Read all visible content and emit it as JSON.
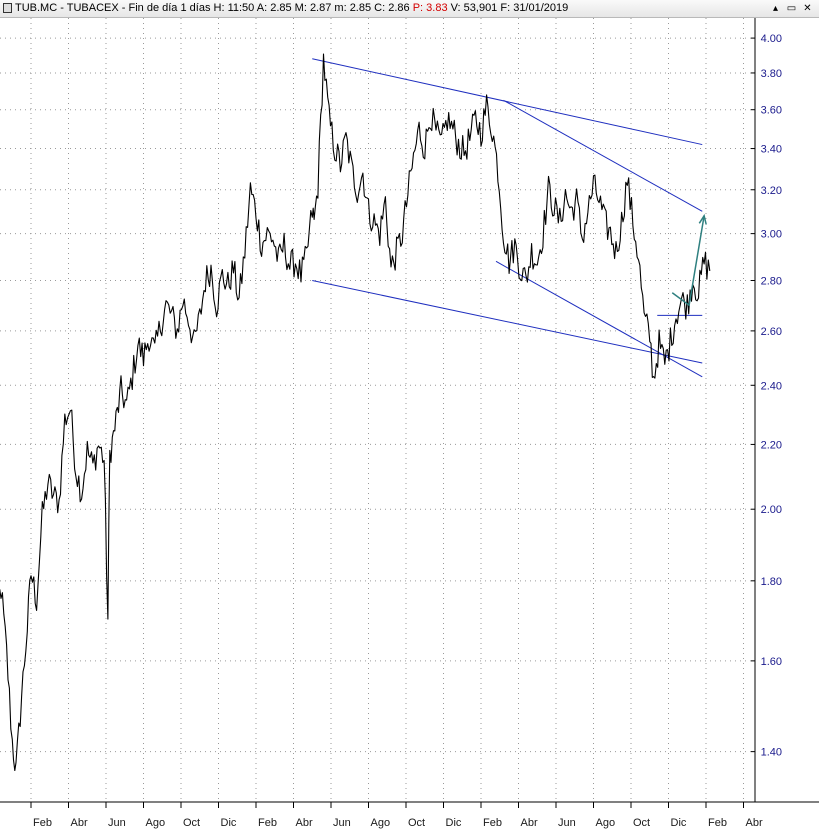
{
  "header": {
    "symbol": "TUB.MC",
    "name": "TUBACEX",
    "period": "Fin de día 1 días",
    "fields": [
      {
        "label": "H:",
        "value": "11:50"
      },
      {
        "label": "A:",
        "value": "2.85"
      },
      {
        "label": "M:",
        "value": "2.87"
      },
      {
        "label": "m:",
        "value": "2.85"
      },
      {
        "label": "C:",
        "value": "2.86"
      },
      {
        "label": "P:",
        "value": "3.83",
        "highlight": true
      },
      {
        "label": "V:",
        "value": "53,901"
      },
      {
        "label": "F:",
        "value": "31/01/2019"
      }
    ],
    "window_buttons": [
      "▴",
      "▭",
      "✕"
    ]
  },
  "colors": {
    "price": "#000000",
    "trendline": "#1f2fbf",
    "arrow": "#2f8080",
    "grid": "#9a9a9a",
    "axis_text": "#1a1a8c"
  },
  "chart_data": {
    "type": "line",
    "scale": "log",
    "ylim": [
      1.3,
      4.12
    ],
    "y_ticks": [
      1.4,
      1.6,
      1.8,
      2.0,
      2.2,
      2.4,
      2.6,
      2.8,
      3.0,
      3.2,
      3.4,
      3.6,
      3.8,
      4.0
    ],
    "y_tick_labels": [
      "1.40",
      "1.60",
      "1.80",
      "2.00",
      "2.20",
      "2.40",
      "2.60",
      "2.80",
      "3.00",
      "3.20",
      "3.40",
      "3.60",
      "3.80",
      "4.00"
    ],
    "x_labels": [
      "Feb",
      "Abr",
      "Jun",
      "Ago",
      "Oct",
      "Dic",
      "Feb",
      "Abr",
      "Jun",
      "Ago",
      "Oct",
      "Dic",
      "Feb",
      "Abr",
      "Jun",
      "Ago",
      "Oct",
      "Dic",
      "Feb",
      "Abr"
    ],
    "x_first_label": 1,
    "x_last_index": 20.6,
    "grid": true,
    "series": [
      {
        "x": [
          0,
          0.2,
          0.35,
          0.5,
          0.6,
          0.75,
          0.9,
          1.0,
          1.15,
          1.3,
          1.45,
          1.6,
          1.75,
          1.9,
          2.05,
          2.2,
          2.35,
          2.5,
          2.65,
          2.8,
          2.95,
          3.05,
          3.1,
          3.2,
          3.4,
          3.55,
          3.7,
          3.85,
          4.0,
          4.15,
          4.3,
          4.45,
          4.6,
          4.75,
          4.9,
          5.05,
          5.2,
          5.35,
          5.5,
          5.65,
          5.8,
          5.95,
          6.1,
          6.25,
          6.4,
          6.55,
          6.7,
          6.85,
          7.0,
          7.15,
          7.3,
          7.45,
          7.6,
          7.75,
          7.9,
          8.05,
          8.2,
          8.35,
          8.5,
          8.55,
          8.65,
          8.8,
          8.95,
          9.1,
          9.25,
          9.4,
          9.55,
          9.7,
          9.85,
          10.0,
          10.15,
          10.3,
          10.45,
          10.6,
          10.75,
          10.9,
          11.05,
          11.2,
          11.35,
          11.5,
          11.65,
          11.8,
          11.95,
          12.1,
          12.25,
          12.4,
          12.55,
          12.7,
          12.85,
          13.0,
          13.15,
          13.3,
          13.45,
          13.6,
          13.75,
          13.9,
          14.05,
          14.2,
          14.35,
          14.5,
          14.65,
          14.8,
          14.95,
          15.1,
          15.25,
          15.4,
          15.55,
          15.7,
          15.85,
          16.0,
          16.15,
          16.3,
          16.45,
          16.6,
          16.75,
          16.9,
          17.05,
          17.2,
          17.35,
          17.5,
          17.6,
          17.75,
          17.9,
          18.05,
          18.2,
          18.35,
          18.5,
          18.65,
          18.8,
          18.95,
          19.1
        ],
        "y": [
          1.68,
          1.78,
          1.62,
          1.42,
          1.36,
          1.52,
          1.68,
          1.82,
          1.75,
          1.98,
          2.08,
          2.04,
          2.02,
          2.28,
          2.32,
          2.12,
          2.05,
          2.18,
          2.13,
          2.2,
          2.15,
          1.7,
          2.17,
          2.23,
          2.38,
          2.33,
          2.43,
          2.55,
          2.5,
          2.58,
          2.52,
          2.62,
          2.7,
          2.66,
          2.6,
          2.72,
          2.65,
          2.55,
          2.65,
          2.8,
          2.85,
          2.7,
          2.82,
          2.78,
          2.85,
          2.72,
          2.92,
          3.2,
          3.1,
          2.95,
          3.0,
          2.98,
          2.88,
          2.95,
          2.86,
          2.88,
          2.82,
          2.9,
          3.1,
          3.05,
          3.22,
          3.88,
          3.55,
          3.4,
          3.32,
          3.45,
          3.3,
          3.2,
          3.28,
          3.1,
          3.05,
          3.0,
          3.15,
          2.85,
          2.92,
          3.0,
          3.18,
          3.35,
          3.5,
          3.4,
          3.58,
          3.48,
          3.42,
          3.55,
          3.5,
          3.42,
          3.38,
          3.45,
          3.55,
          3.48,
          3.62,
          3.5,
          3.3,
          3.0,
          2.88,
          2.95,
          2.85,
          2.8,
          2.92,
          2.88,
          3.0,
          3.2,
          3.12,
          3.05,
          3.18,
          3.1,
          3.15,
          2.98,
          3.1,
          3.22,
          3.15,
          3.05,
          3.0,
          2.92,
          3.05,
          3.25,
          3.05,
          2.9,
          2.65,
          2.58,
          2.42,
          2.55,
          2.48,
          2.56,
          2.66,
          2.72,
          2.7,
          2.8,
          2.75,
          2.88,
          2.84
        ]
      }
    ],
    "trendlines": [
      {
        "x": [
          8.5,
          18.9
        ],
        "y": [
          3.88,
          3.42
        ]
      },
      {
        "x": [
          13.6,
          18.9
        ],
        "y": [
          3.65,
          3.1
        ]
      },
      {
        "x": [
          8.5,
          18.9
        ],
        "y": [
          2.8,
          2.48
        ]
      },
      {
        "x": [
          13.4,
          18.9
        ],
        "y": [
          2.88,
          2.43
        ]
      },
      {
        "x": [
          17.7,
          18.9
        ],
        "y": [
          2.66,
          2.66
        ]
      }
    ],
    "arrow": {
      "points": [
        {
          "x": 18.1,
          "y": 2.75
        },
        {
          "x": 18.55,
          "y": 2.7
        },
        {
          "x": 18.95,
          "y": 3.08
        }
      ]
    }
  }
}
